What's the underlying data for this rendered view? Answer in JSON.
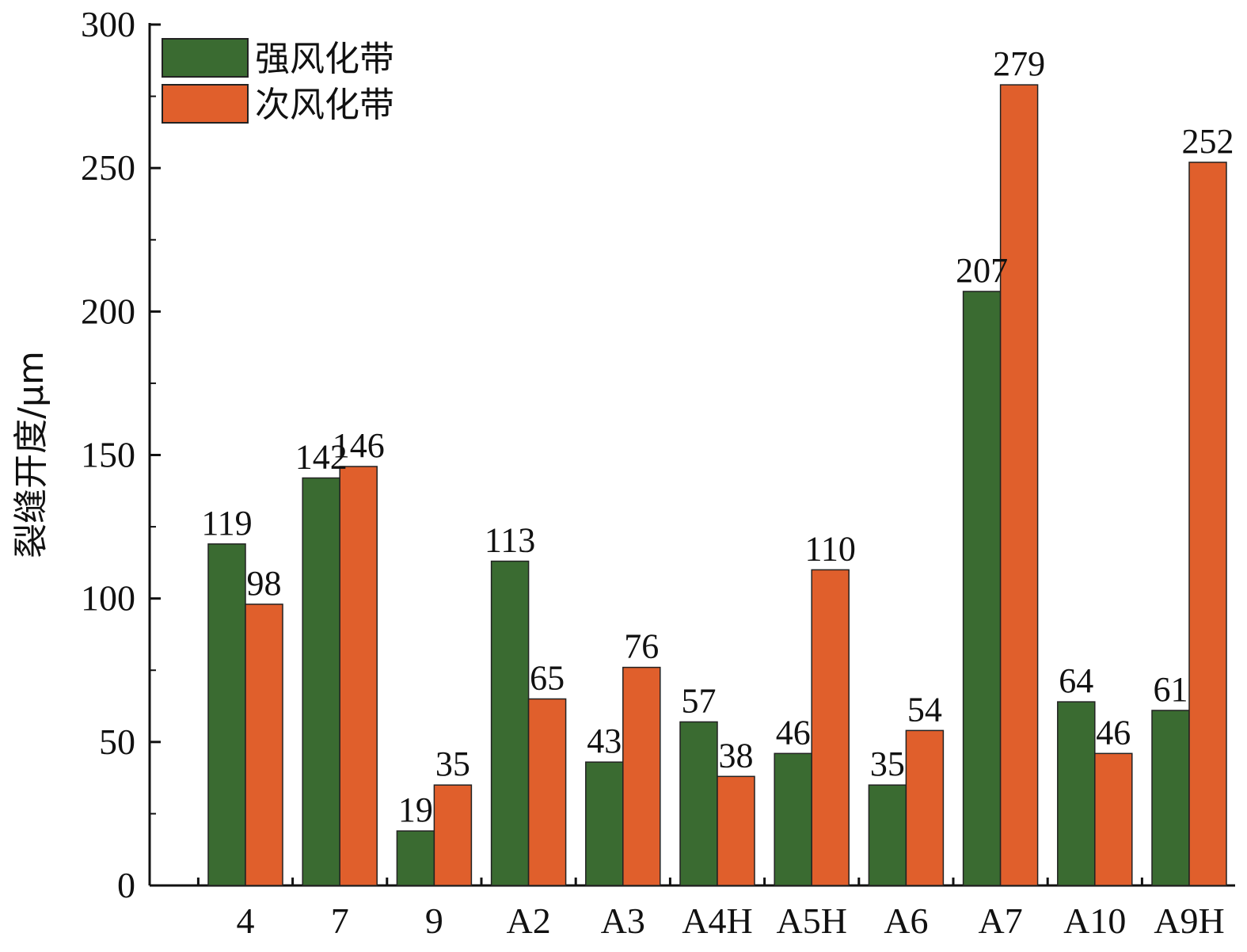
{
  "chart_data": {
    "type": "bar",
    "title": "",
    "xlabel": "",
    "ylabel": "裂缝开度/μm",
    "ylim": [
      0,
      300
    ],
    "yticks": [
      0,
      50,
      100,
      150,
      200,
      250,
      300
    ],
    "categories": [
      "4",
      "7",
      "9",
      "A2",
      "A3",
      "A4H",
      "A5H",
      "A6",
      "A7",
      "A10",
      "A9H"
    ],
    "series": [
      {
        "name": "强风化带",
        "color": "#3a6b31",
        "values": [
          119,
          142,
          19,
          113,
          43,
          57,
          46,
          35,
          207,
          64,
          61
        ]
      },
      {
        "name": "次风化带",
        "color": "#e05f2c",
        "values": [
          98,
          146,
          35,
          65,
          76,
          38,
          110,
          54,
          279,
          46,
          252
        ]
      }
    ],
    "legend_position": "top-left",
    "data_labels": true
  }
}
